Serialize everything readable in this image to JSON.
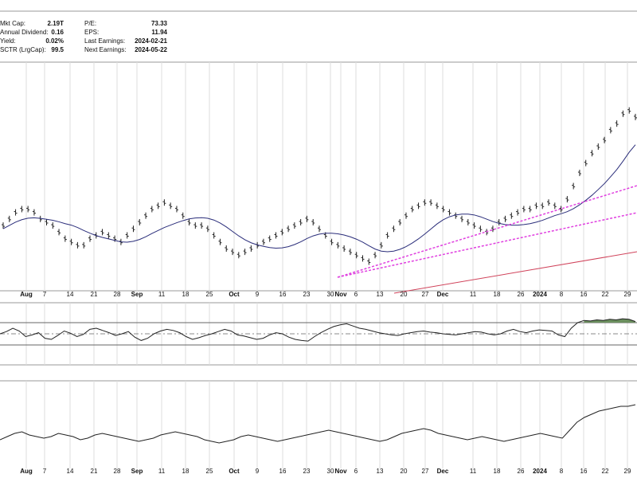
{
  "stats": {
    "left": [
      {
        "label": "Mkt Cap:",
        "value": "2.19T"
      },
      {
        "label": "Annual Dividend:",
        "value": "0.16"
      },
      {
        "label": "Yield:",
        "value": "0.02%"
      },
      {
        "label": "SCTR (LrgCap):",
        "value": "99.5"
      }
    ],
    "right": [
      {
        "label": "P/E:",
        "value": "73.33"
      },
      {
        "label": "EPS:",
        "value": "11.94"
      },
      {
        "label": "Last Earnings:",
        "value": "2024-02-21"
      },
      {
        "label": "Next Earnings:",
        "value": "2024-05-22"
      }
    ]
  },
  "colors": {
    "bars": "#222222",
    "ma": "#2a2d7a",
    "trendline": "#e040e0",
    "long_ma": "#d0425a",
    "band_fill": "#6b8f5e",
    "grid": "#dddddd"
  },
  "chart_data": [
    {
      "type": "ohlc",
      "x_tick_labels": [
        "Aug",
        "7",
        "14",
        "21",
        "28",
        "Sep",
        "11",
        "18",
        "25",
        "Oct",
        "9",
        "16",
        "23",
        "30",
        "Nov",
        "6",
        "13",
        "20",
        "27",
        "Dec",
        "11",
        "18",
        "26",
        "2024",
        "8",
        "16",
        "22",
        "29"
      ],
      "bold_tick_labels": [
        "Aug",
        "Sep",
        "Oct",
        "Nov",
        "Dec",
        "2024"
      ],
      "price_index": [
        50,
        52,
        54,
        55,
        55,
        54,
        52,
        51,
        50,
        48,
        46,
        45,
        44,
        44,
        46,
        47,
        48,
        47,
        46,
        45,
        47,
        49,
        51,
        53,
        55,
        56,
        57,
        56,
        55,
        53,
        51,
        50,
        50,
        49,
        47,
        45,
        43,
        42,
        41,
        42,
        43,
        44,
        45,
        46,
        47,
        48,
        49,
        50,
        51,
        52,
        51,
        49,
        47,
        45,
        44,
        43,
        42,
        41,
        40,
        39,
        41,
        44,
        47,
        49,
        51,
        53,
        55,
        56,
        57,
        57,
        56,
        55,
        54,
        53,
        52,
        51,
        50,
        49,
        48,
        49,
        51,
        52,
        53,
        54,
        55,
        55,
        56,
        56,
        57,
        56,
        55,
        58,
        62,
        66,
        69,
        72,
        74,
        76,
        79,
        81,
        84,
        85,
        83
      ],
      "lines": [
        "moving average",
        "dotted trendlines",
        "long-term average"
      ]
    },
    {
      "type": "line",
      "name": "",
      "band": [
        0.3,
        0.7
      ],
      "values": [
        50,
        54,
        60,
        55,
        45,
        48,
        52,
        42,
        40,
        47,
        55,
        51,
        45,
        49,
        58,
        60,
        56,
        52,
        47,
        50,
        54,
        44,
        38,
        42,
        50,
        55,
        58,
        56,
        52,
        45,
        40,
        43,
        47,
        50,
        54,
        58,
        55,
        48,
        46,
        43,
        40,
        42,
        48,
        52,
        50,
        44,
        40,
        38,
        37,
        45,
        52,
        58,
        63,
        66,
        68,
        64,
        60,
        58,
        55,
        52,
        50,
        48,
        47,
        50,
        52,
        54,
        55,
        53,
        52,
        50,
        49,
        48,
        50,
        52,
        54,
        53,
        50,
        48,
        50,
        55,
        58,
        54,
        52,
        55,
        57,
        56,
        55,
        48,
        45,
        60,
        70,
        74,
        73,
        75,
        74,
        76,
        75,
        77,
        76,
        72
      ]
    },
    {
      "type": "line",
      "name": "",
      "values": [
        44,
        46,
        48,
        49,
        47,
        46,
        45,
        46,
        48,
        47,
        46,
        44,
        45,
        47,
        48,
        47,
        46,
        45,
        44,
        43,
        44,
        45,
        47,
        48,
        49,
        48,
        47,
        46,
        44,
        43,
        42,
        43,
        44,
        46,
        47,
        46,
        45,
        44,
        43,
        44,
        45,
        46,
        47,
        48,
        49,
        50,
        49,
        48,
        47,
        46,
        45,
        44,
        43,
        44,
        46,
        48,
        49,
        50,
        51,
        50,
        48,
        47,
        46,
        45,
        44,
        45,
        46,
        45,
        44,
        43,
        44,
        45,
        46,
        47,
        48,
        47,
        46,
        45,
        50,
        55,
        58,
        60,
        62,
        63,
        64,
        65,
        65,
        66
      ]
    }
  ]
}
